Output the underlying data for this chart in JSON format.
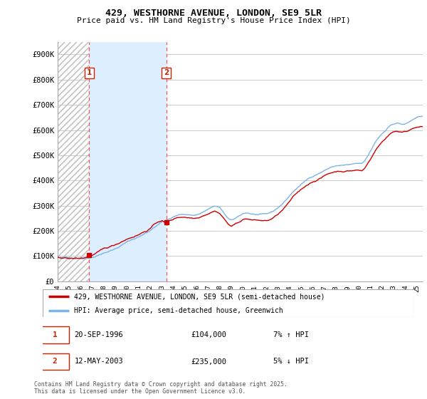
{
  "title": "429, WESTHORNE AVENUE, LONDON, SE9 5LR",
  "subtitle": "Price paid vs. HM Land Registry's House Price Index (HPI)",
  "ylabel_ticks": [
    "£0",
    "£100K",
    "£200K",
    "£300K",
    "£400K",
    "£500K",
    "£600K",
    "£700K",
    "£800K",
    "£900K"
  ],
  "ytick_values": [
    0,
    100000,
    200000,
    300000,
    400000,
    500000,
    600000,
    700000,
    800000,
    900000
  ],
  "ylim": [
    0,
    950000
  ],
  "xlim_start": 1994.0,
  "xlim_end": 2025.5,
  "purchase1_x": 1996.72,
  "purchase1_y": 104000,
  "purchase1_label": "1",
  "purchase2_x": 2003.37,
  "purchase2_y": 235000,
  "purchase2_label": "2",
  "line_color_price": "#cc0000",
  "line_color_hpi": "#7ab4e8",
  "marker_color": "#cc0000",
  "vline_color": "#ff5555",
  "hatch_color": "#bbbbbb",
  "fill_color_between": "#ddeeff",
  "legend_line1": "429, WESTHORNE AVENUE, LONDON, SE9 5LR (semi-detached house)",
  "legend_line2": "HPI: Average price, semi-detached house, Greenwich",
  "annot1_date": "20-SEP-1996",
  "annot1_price": "£104,000",
  "annot1_hpi": "7% ↑ HPI",
  "annot2_date": "12-MAY-2003",
  "annot2_price": "£235,000",
  "annot2_hpi": "5% ↓ HPI",
  "footnote": "Contains HM Land Registry data © Crown copyright and database right 2025.\nThis data is licensed under the Open Government Licence v3.0.",
  "background_color": "#ffffff",
  "grid_color": "#cccccc",
  "box_color": "#cc2200"
}
